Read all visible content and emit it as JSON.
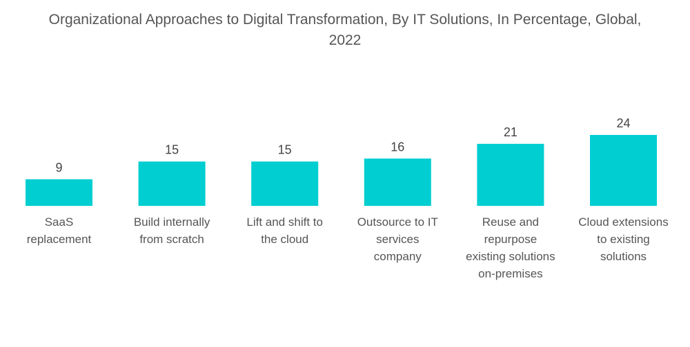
{
  "chart_data": {
    "type": "bar",
    "title": "Organizational Approaches to Digital Transformation, By IT Solutions, In Percentage, Global, 2022",
    "title_lines": [
      "Organizational Approaches to Digital Transformation, By IT Solutions, In Percentage, Global,",
      "2022"
    ],
    "categories": [
      "SaaS replacement",
      "Build internally from scratch",
      "Lift and shift to the cloud",
      "Outsource to IT services company",
      "Reuse and repurpose existing solutions on-premises",
      "Cloud extensions to existing solutions"
    ],
    "category_label_lines": [
      [
        "SaaS",
        "replacement"
      ],
      [
        "Build internally",
        "from scratch"
      ],
      [
        "Lift and shift to",
        "the cloud"
      ],
      [
        "Outsource to IT",
        "services",
        "company"
      ],
      [
        "Reuse and",
        "repurpose",
        "existing solutions",
        "on-premises"
      ],
      [
        "Cloud extensions",
        "to existing",
        "solutions"
      ]
    ],
    "values": [
      9,
      15,
      15,
      16,
      21,
      24
    ],
    "data_labels": [
      "9",
      "15",
      "15",
      "16",
      "21",
      "24"
    ],
    "xlabel": "",
    "ylabel": "",
    "ylim": [
      0,
      24
    ],
    "grid": false,
    "legend": "none",
    "bar_color": "#00CED1"
  }
}
